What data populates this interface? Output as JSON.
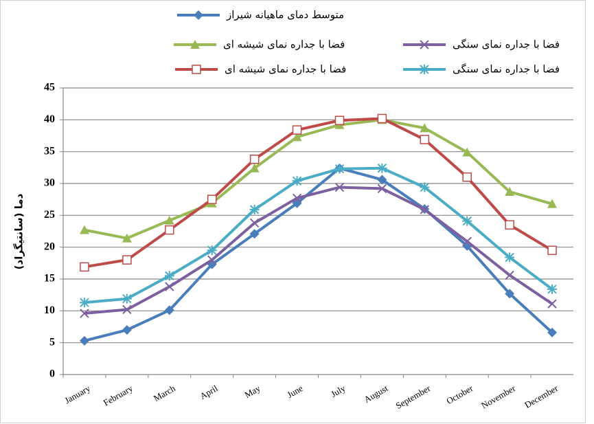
{
  "chart_data": {
    "type": "line",
    "y_label": "دما (سانتیگراد)",
    "categories": [
      "January",
      "February",
      "March",
      "April",
      "May",
      "June",
      "July",
      "August",
      "September",
      "October",
      "November",
      "December"
    ],
    "series": [
      {
        "name": "متوسط دمای ماهیانه شیراز",
        "color": "#4a7ebb",
        "marker": "diamond",
        "values": [
          5.3,
          7.0,
          10.1,
          17.3,
          22.1,
          26.9,
          32.4,
          30.6,
          26.0,
          20.2,
          12.7,
          6.6
        ]
      },
      {
        "name": "فضا با جداره نمای شیشه ای",
        "color": "#98b954",
        "marker": "triangle",
        "values": [
          22.7,
          21.4,
          24.2,
          26.9,
          32.4,
          37.3,
          39.2,
          40.0,
          38.7,
          34.9,
          28.7,
          26.8
        ]
      },
      {
        "name": "فضا با جداره نمای سنگی",
        "color": "#7d60a0",
        "marker": "x",
        "values": [
          9.6,
          10.2,
          13.8,
          18.0,
          23.8,
          27.7,
          29.4,
          29.2,
          25.9,
          20.9,
          15.6,
          11.1
        ]
      },
      {
        "name": "فضا با جداره نمای شیشه ای",
        "color": "#be4b48",
        "marker": "square",
        "values": [
          16.9,
          18.0,
          22.7,
          27.5,
          33.8,
          38.4,
          39.9,
          40.2,
          36.9,
          31.0,
          23.5,
          19.5
        ]
      },
      {
        "name": "فضا با جداره نمای سنگی",
        "color": "#4bacc6",
        "marker": "star",
        "values": [
          11.3,
          11.9,
          15.5,
          19.5,
          25.9,
          30.4,
          32.3,
          32.4,
          29.4,
          24.1,
          18.4,
          13.4
        ]
      }
    ],
    "ylim": [
      0,
      45
    ],
    "yticks": [
      0,
      5,
      10,
      15,
      20,
      25,
      30,
      35,
      40,
      45
    ],
    "grid": true
  }
}
